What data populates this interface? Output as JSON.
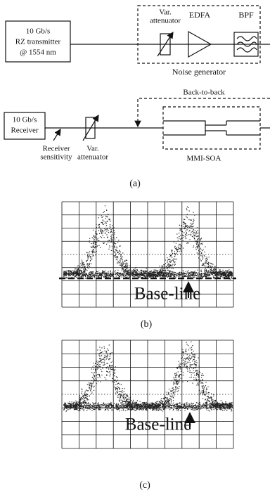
{
  "figure": {
    "transmitter": {
      "lines": [
        "10 Gb/s",
        "RZ transmitter",
        "@ 1554 nm"
      ]
    },
    "attenuator_top": {
      "lines": [
        "Var.",
        "attenuator"
      ]
    },
    "edfa": "EDFA",
    "bpf": "BPF",
    "noise_generator": "Noise generator",
    "back_to_back": "Back-to-back",
    "receiver": {
      "lines": [
        "10 Gb/s",
        "Receiver"
      ]
    },
    "receiver_sensitivity": {
      "lines": [
        "Receiver",
        "sensitivity"
      ]
    },
    "attenuator_bottom": {
      "lines": [
        "Var.",
        "attenuator"
      ]
    },
    "mmi_soa": "MMI-SOA",
    "caption_a": "(a)",
    "panel_b": {
      "annotation": "Base-line",
      "caption": "(b)"
    },
    "panel_c": {
      "annotation": "Base-line",
      "caption": "(c)"
    }
  }
}
